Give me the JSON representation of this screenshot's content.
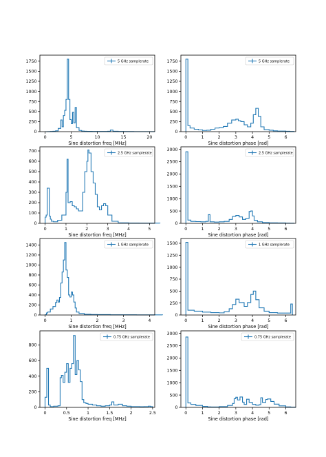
{
  "figure": {
    "name": "sine-distortion-histograms"
  },
  "colors": {
    "line": "#1f77b4",
    "axes": "#000000",
    "legend_border": "#cccccc",
    "background": "#ffffff"
  },
  "chart_data": [
    {
      "type": "histogram-step",
      "xlabel": "Sine distortion freq [MHz]",
      "ylabel": "",
      "legend": "5 GHz samplerate",
      "legend_loc": "upper right",
      "grid": false,
      "xlim": [
        -1,
        21
      ],
      "ylim": [
        0,
        1900
      ],
      "xticks": [
        0,
        5,
        10,
        15,
        20
      ],
      "yticks": [
        0,
        250,
        500,
        750,
        1000,
        1250,
        1500,
        1750
      ],
      "x": [
        0,
        0.5,
        1,
        1.5,
        2,
        2.5,
        3,
        3.25,
        3.5,
        3.75,
        4,
        4.25,
        4.5,
        4.75,
        5,
        5.25,
        5.5,
        5.75,
        6,
        6.5,
        7,
        7.5,
        8,
        9,
        10,
        11,
        12,
        12.5,
        13,
        14,
        15,
        16,
        17,
        18,
        19,
        20
      ],
      "y": [
        0,
        2,
        5,
        10,
        20,
        80,
        290,
        120,
        400,
        530,
        800,
        1800,
        800,
        300,
        200,
        480,
        220,
        600,
        100,
        30,
        15,
        10,
        8,
        5,
        5,
        5,
        10,
        40,
        10,
        5,
        3,
        3,
        2,
        2,
        2,
        2
      ]
    },
    {
      "type": "histogram-step",
      "xlabel": "Sine distortion phase [rad]",
      "ylabel": "",
      "legend": "5 GHz samplerate",
      "legend_loc": "upper right",
      "grid": false,
      "xlim": [
        -0.3,
        6.6
      ],
      "ylim": [
        0,
        1900
      ],
      "xticks": [
        0,
        1,
        2,
        3,
        4,
        5,
        6
      ],
      "yticks": [
        0,
        250,
        500,
        750,
        1000,
        1250,
        1500,
        1750
      ],
      "x": [
        0,
        0.06,
        0.12,
        0.25,
        0.5,
        0.75,
        1,
        1.25,
        1.5,
        1.75,
        2,
        2.25,
        2.5,
        2.75,
        3,
        3.15,
        3.3,
        3.5,
        3.7,
        3.9,
        4.05,
        4.2,
        4.35,
        4.5,
        4.7,
        5,
        5.25,
        5.5,
        6,
        6.25
      ],
      "y": [
        1800,
        1800,
        150,
        90,
        60,
        45,
        30,
        35,
        60,
        90,
        100,
        130,
        210,
        290,
        310,
        270,
        250,
        170,
        120,
        210,
        420,
        580,
        380,
        120,
        50,
        35,
        20,
        15,
        10,
        5
      ]
    },
    {
      "type": "histogram-step",
      "xlabel": "Sine distortion freq [MHz]",
      "ylabel": "",
      "legend": "2.5 GHz samplerate",
      "legend_loc": "upper right",
      "grid": false,
      "xlim": [
        -0.25,
        5.25
      ],
      "ylim": [
        0,
        740
      ],
      "xticks": [
        0,
        1,
        2,
        3,
        4,
        5
      ],
      "yticks": [
        0,
        100,
        200,
        300,
        400,
        500,
        600,
        700
      ],
      "x": [
        0,
        0.05,
        0.1,
        0.2,
        0.25,
        0.3,
        0.4,
        0.6,
        0.8,
        1,
        1.05,
        1.1,
        1.2,
        1.3,
        1.4,
        1.5,
        1.6,
        1.8,
        1.9,
        2,
        2.05,
        2.1,
        2.2,
        2.3,
        2.4,
        2.5,
        2.6,
        2.7,
        2.8,
        2.9,
        3,
        3.2,
        3.5,
        4,
        4.5,
        5
      ],
      "y": [
        60,
        80,
        340,
        70,
        40,
        20,
        15,
        30,
        80,
        300,
        620,
        200,
        210,
        170,
        160,
        140,
        120,
        300,
        500,
        600,
        710,
        680,
        500,
        390,
        280,
        160,
        130,
        170,
        190,
        170,
        80,
        20,
        5,
        3,
        2,
        2
      ]
    },
    {
      "type": "histogram-step",
      "xlabel": "Sine distortion phase [rad]",
      "ylabel": "",
      "legend": "2.5 GHz samplerate",
      "legend_loc": "upper right",
      "grid": false,
      "xlim": [
        -0.3,
        6.6
      ],
      "ylim": [
        0,
        3100
      ],
      "xticks": [
        0,
        1,
        2,
        3,
        4,
        5,
        6
      ],
      "yticks": [
        0,
        500,
        1000,
        1500,
        2000,
        2500,
        3000
      ],
      "x": [
        0,
        0.06,
        0.12,
        0.3,
        0.6,
        0.9,
        1.2,
        1.35,
        1.45,
        1.7,
        2,
        2.3,
        2.6,
        2.8,
        3,
        3.2,
        3.4,
        3.6,
        3.8,
        3.9,
        4,
        4.1,
        4.3,
        4.6,
        5,
        5.5,
        6,
        6.25
      ],
      "y": [
        2900,
        2900,
        130,
        80,
        70,
        60,
        80,
        350,
        60,
        50,
        60,
        80,
        160,
        280,
        320,
        260,
        160,
        200,
        480,
        500,
        300,
        120,
        60,
        30,
        20,
        15,
        10,
        5
      ]
    },
    {
      "type": "histogram-step",
      "xlabel": "Sine distortion freq [MHz]",
      "ylabel": "",
      "legend": "1 GHz samplerate",
      "legend_loc": "upper right",
      "grid": false,
      "xlim": [
        -0.2,
        4.2
      ],
      "ylim": [
        0,
        1530
      ],
      "xticks": [
        0,
        1,
        2,
        3,
        4
      ],
      "yticks": [
        0,
        200,
        400,
        600,
        800,
        1000,
        1200,
        1400
      ],
      "x": [
        0,
        0.05,
        0.1,
        0.2,
        0.3,
        0.4,
        0.45,
        0.5,
        0.55,
        0.6,
        0.65,
        0.7,
        0.75,
        0.8,
        0.85,
        0.9,
        0.95,
        1,
        1.05,
        1.1,
        1.15,
        1.2,
        1.3,
        1.5,
        1.75,
        2,
        2.5,
        3,
        3.5,
        4
      ],
      "y": [
        5,
        40,
        60,
        120,
        170,
        250,
        300,
        260,
        350,
        640,
        860,
        1100,
        1450,
        900,
        750,
        400,
        360,
        460,
        400,
        260,
        140,
        60,
        30,
        15,
        10,
        8,
        5,
        5,
        3,
        3
      ]
    },
    {
      "type": "histogram-step",
      "xlabel": "Sine distortion phase [rad]",
      "ylabel": "",
      "legend": "1 GHz samplerate",
      "legend_loc": "upper right",
      "grid": false,
      "xlim": [
        -0.3,
        6.6
      ],
      "ylim": [
        0,
        1600
      ],
      "xticks": [
        0,
        1,
        2,
        3,
        4,
        5,
        6
      ],
      "yticks": [
        0,
        250,
        500,
        750,
        1000,
        1250,
        1500
      ],
      "x": [
        0,
        0.06,
        0.12,
        0.5,
        1,
        1.5,
        2,
        2.3,
        2.6,
        2.8,
        3,
        3.2,
        3.5,
        3.7,
        3.9,
        4.05,
        4.2,
        4.4,
        4.7,
        5,
        5.5,
        6,
        6.3,
        6.35
      ],
      "y": [
        1520,
        1520,
        100,
        80,
        60,
        50,
        45,
        70,
        130,
        220,
        330,
        260,
        180,
        260,
        430,
        500,
        320,
        150,
        80,
        50,
        40,
        40,
        230,
        230
      ]
    },
    {
      "type": "histogram-step",
      "xlabel": "Sine distortion freq [MHz]",
      "ylabel": "",
      "legend": "0.75 GHz samplerate",
      "legend_loc": "upper right",
      "grid": false,
      "xlim": [
        -0.12,
        2.55
      ],
      "ylim": [
        0,
        980
      ],
      "xticks": [
        0.0,
        0.5,
        1.0,
        1.5,
        2.0,
        2.5
      ],
      "yticks": [
        0,
        200,
        400,
        600,
        800
      ],
      "x": [
        0,
        0.04,
        0.08,
        0.12,
        0.2,
        0.3,
        0.35,
        0.38,
        0.42,
        0.46,
        0.5,
        0.54,
        0.58,
        0.62,
        0.66,
        0.7,
        0.74,
        0.78,
        0.82,
        0.86,
        0.9,
        0.95,
        1,
        1.1,
        1.2,
        1.3,
        1.4,
        1.5,
        1.55,
        1.6,
        1.7,
        1.8,
        1.9,
        2,
        2.1,
        2.2,
        2.3,
        2.4,
        2.45
      ],
      "y": [
        130,
        500,
        30,
        10,
        15,
        20,
        380,
        410,
        320,
        450,
        560,
        320,
        500,
        560,
        920,
        420,
        600,
        480,
        330,
        100,
        60,
        50,
        40,
        30,
        20,
        15,
        20,
        30,
        70,
        30,
        40,
        20,
        15,
        10,
        10,
        8,
        10,
        15,
        10
      ]
    },
    {
      "type": "histogram-step",
      "xlabel": "Sine distortion phase [rad]",
      "ylabel": "",
      "legend": "0.75 GHz samplerate",
      "legend_loc": "upper right",
      "grid": false,
      "xlim": [
        -0.3,
        6.6
      ],
      "ylim": [
        0,
        3100
      ],
      "xticks": [
        0,
        1,
        2,
        3,
        4,
        5,
        6
      ],
      "yticks": [
        0,
        500,
        1000,
        1500,
        2000,
        2500,
        3000
      ],
      "x": [
        0,
        0.06,
        0.12,
        0.3,
        0.6,
        1,
        1.3,
        1.5,
        2,
        2.5,
        2.8,
        2.9,
        3,
        3.1,
        3.25,
        3.4,
        3.5,
        3.65,
        3.8,
        4,
        4.2,
        4.4,
        4.5,
        4.6,
        4.8,
        4.9,
        5.1,
        5.3,
        5.6,
        6,
        6.3
      ],
      "y": [
        2850,
        2850,
        180,
        120,
        80,
        40,
        20,
        15,
        30,
        80,
        160,
        350,
        410,
        300,
        420,
        210,
        120,
        330,
        200,
        120,
        90,
        110,
        390,
        200,
        320,
        340,
        240,
        130,
        60,
        20,
        10
      ]
    }
  ]
}
